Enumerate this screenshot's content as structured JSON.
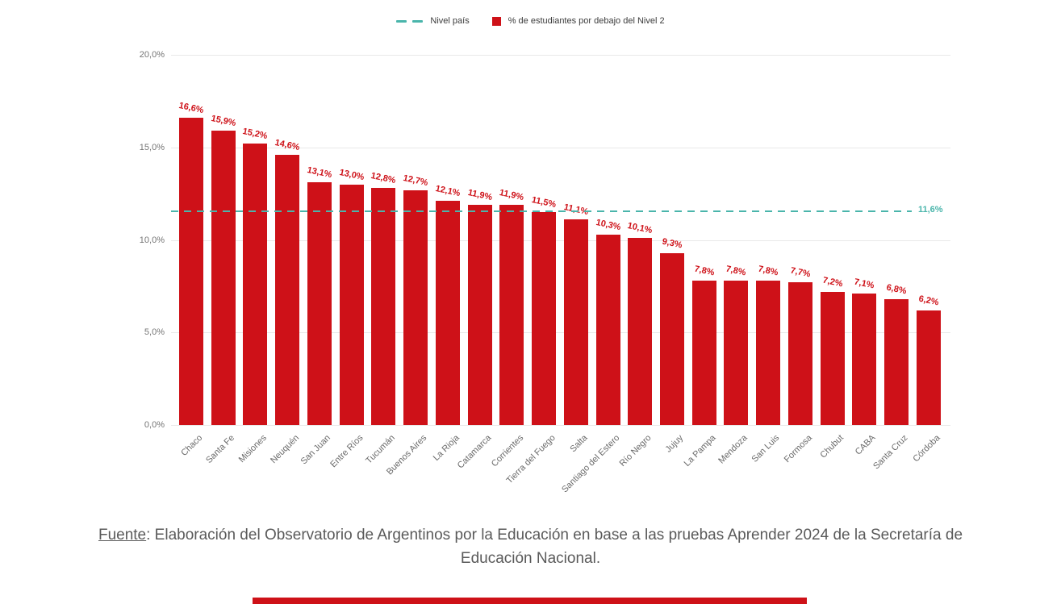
{
  "legend": {
    "items": [
      {
        "label": "Nivel país"
      },
      {
        "label": "% de estudiantes por debajo del Nivel 2"
      }
    ]
  },
  "chart_data": {
    "type": "bar",
    "title": "",
    "xlabel": "",
    "ylabel": "",
    "categories": [
      "Chaco",
      "Santa Fe",
      "Misiones",
      "Neuquén",
      "San Juan",
      "Entre Ríos",
      "Tucumán",
      "Buenos Aires",
      "La Rioja",
      "Catamarca",
      "Corrientes",
      "Tierra del Fuego",
      "Salta",
      "Santiago del Estero",
      "Río Negro",
      "Jujuy",
      "La Pampa",
      "Mendoza",
      "San Luis",
      "Formosa",
      "Chubut",
      "CABA",
      "Santa Cruz",
      "Córdoba"
    ],
    "values": [
      16.6,
      15.9,
      15.2,
      14.6,
      13.1,
      13.0,
      12.8,
      12.7,
      12.1,
      11.9,
      11.9,
      11.5,
      11.1,
      10.3,
      10.1,
      9.3,
      7.8,
      7.8,
      7.8,
      7.7,
      7.2,
      7.1,
      6.8,
      6.2
    ],
    "value_labels": [
      "16,6%",
      "15,9%",
      "15,2%",
      "14,6%",
      "13,1%",
      "13,0%",
      "12,8%",
      "12,7%",
      "12,1%",
      "11,9%",
      "11,9%",
      "11,5%",
      "11,1%",
      "10,3%",
      "10,1%",
      "9,3%",
      "7,8%",
      "7,8%",
      "7,8%",
      "7,7%",
      "7,2%",
      "7,1%",
      "6,8%",
      "6,2%"
    ],
    "series_name": "% de estudiantes por debajo del Nivel 2",
    "ylim": [
      0,
      20
    ],
    "y_ticks": [
      {
        "value": 20,
        "label": "20,0%"
      },
      {
        "value": 15,
        "label": "15,0%"
      },
      {
        "value": 10,
        "label": "10,0%"
      },
      {
        "value": 5,
        "label": "5,0%"
      },
      {
        "value": 0,
        "label": "0,0%"
      }
    ],
    "grid": true,
    "legend_position": "top-center",
    "reference_line": {
      "name": "Nivel país",
      "value": 11.6,
      "label": "11,6%"
    },
    "colors": {
      "bar": "#ce1118",
      "reference": "#4ab5ab"
    }
  },
  "source": {
    "label": "Fuente",
    "text": ": Elaboración del Observatorio de Argentinos por la Educación en base a las pruebas Aprender 2024 de la Secretaría de Educación Nacional."
  }
}
